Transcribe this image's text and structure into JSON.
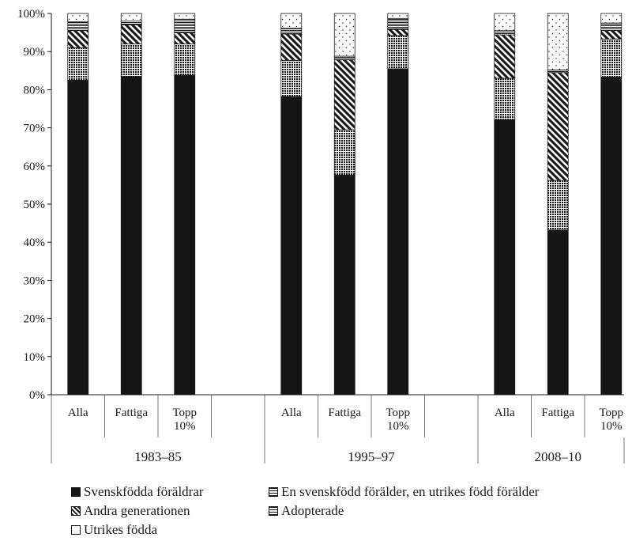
{
  "chart_data": {
    "type": "bar",
    "stacked": true,
    "percent_stacked": true,
    "title": "",
    "xlabel": "",
    "ylabel": "",
    "ylim": [
      0,
      100
    ],
    "yticks": [
      "0%",
      "10%",
      "20%",
      "30%",
      "40%",
      "50%",
      "60%",
      "70%",
      "80%",
      "90%",
      "100%"
    ],
    "grid": false,
    "legend_position": "bottom",
    "groups": [
      {
        "label": "1983–85",
        "categories": [
          {
            "label": "Alla"
          },
          {
            "label": "Fattiga"
          },
          {
            "label": "Topp 10%"
          }
        ]
      },
      {
        "label": "1995–97",
        "categories": [
          {
            "label": "Alla"
          },
          {
            "label": "Fattiga"
          },
          {
            "label": "Topp 10%"
          }
        ]
      },
      {
        "label": "2008–10",
        "categories": [
          {
            "label": "Alla"
          },
          {
            "label": "Fattiga"
          },
          {
            "label": "Topp 10%"
          }
        ]
      }
    ],
    "categories": [
      "Alla",
      "Fattiga",
      "Topp 10%",
      "Alla",
      "Fattiga",
      "Topp 10%",
      "Alla",
      "Fattiga",
      "Topp 10%"
    ],
    "series": [
      {
        "name": "Svenskfödda föräldrar",
        "pattern": "solid",
        "values": [
          82.5,
          83.5,
          83.8,
          78.2,
          57.6,
          85.5,
          72.1,
          43.2,
          83.3
        ]
      },
      {
        "name": "En svenskfödd förälder, en utrikes född förälder",
        "pattern": "stipple",
        "values": [
          8.5,
          8.5,
          8.2,
          9.5,
          11.9,
          8.7,
          10.9,
          13.0,
          10.0
        ]
      },
      {
        "name": "Andra generationen",
        "pattern": "diagonal",
        "values": [
          4.5,
          5.0,
          2.9,
          6.9,
          18.3,
          1.6,
          11.4,
          28.3,
          2.2
        ]
      },
      {
        "name": "Adopterade",
        "pattern": "horizontal",
        "values": [
          2.3,
          1.0,
          3.6,
          1.5,
          1.0,
          2.9,
          1.1,
          0.7,
          2.0
        ]
      },
      {
        "name": "Utrikes födda",
        "pattern": "dotted",
        "values": [
          2.2,
          2.0,
          1.5,
          3.9,
          11.2,
          1.3,
          4.5,
          14.8,
          2.5
        ]
      }
    ]
  },
  "colors": {
    "ink": "#1a1a1a",
    "bar_fill": "#141414",
    "background": "#ffffff"
  }
}
